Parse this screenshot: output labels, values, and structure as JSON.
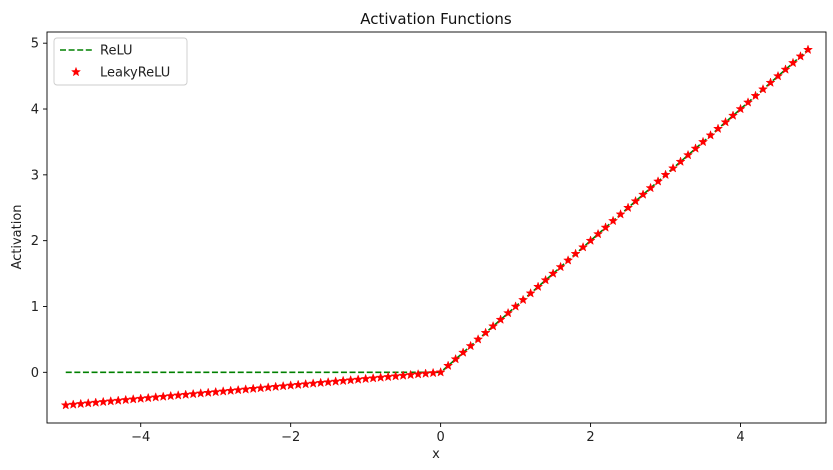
{
  "chart_data": {
    "type": "line",
    "title": "Activation Functions",
    "xlabel": "x",
    "ylabel": "Activation",
    "xlim": [
      -5.25,
      5.14
    ],
    "ylim": [
      -0.77,
      5.17
    ],
    "xticks": [
      -4,
      -2,
      0,
      2,
      4
    ],
    "yticks": [
      0,
      1,
      2,
      3,
      4,
      5
    ],
    "xtick_labels": [
      "−4",
      "−2",
      "0",
      "2",
      "4"
    ],
    "ytick_labels": [
      "0",
      "1",
      "2",
      "3",
      "4",
      "5"
    ],
    "grid": false,
    "legend_position": "top-left",
    "x": {
      "start": -5.0,
      "stop": 4.9,
      "step": 0.1
    },
    "series": [
      {
        "name": "ReLU",
        "function": "relu",
        "style": "dashed-line",
        "color": "#008000"
      },
      {
        "name": "LeakyReLU",
        "function": "leaky_relu",
        "negative_slope": 0.1,
        "style": "star-markers",
        "color": "#ff0000"
      }
    ]
  }
}
